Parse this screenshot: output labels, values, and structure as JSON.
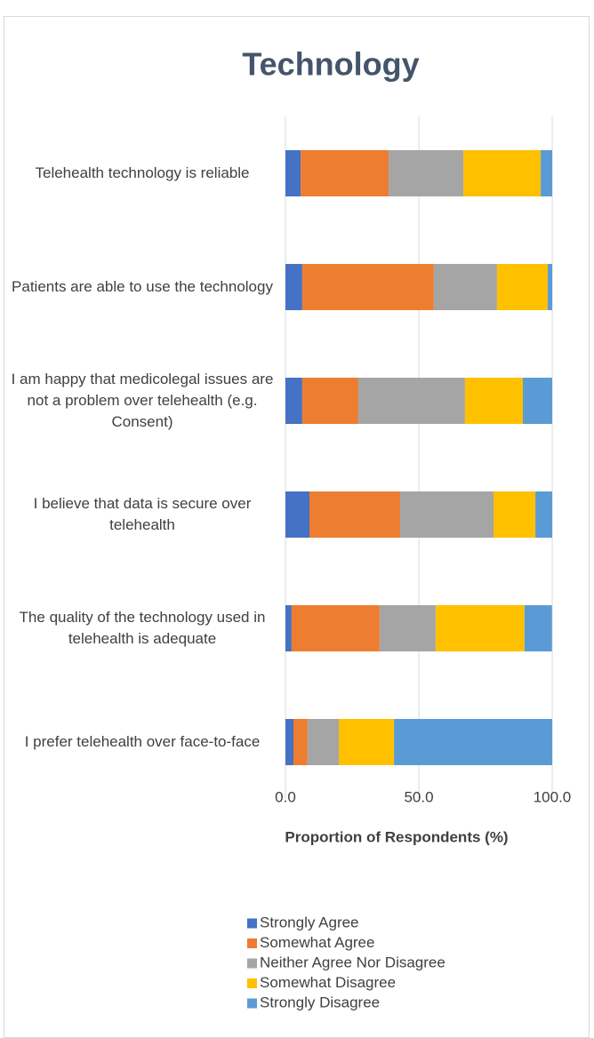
{
  "chart_data": {
    "type": "stacked_barh",
    "title": "Technology",
    "x_label": "Proportion of Respondents (%)",
    "categories": [
      "Telehealth technology is reliable",
      "Patients are able to use the technology",
      "I am happy that medicolegal issues are not a problem over telehealth (e.g. Consent)",
      "I believe that data is secure over telehealth",
      "The quality of the technology used in telehealth is adequate",
      "I prefer telehealth over face-to-face"
    ],
    "series": [
      {
        "name": "Strongly Agree",
        "color": "#4472c4",
        "values": [
          5.7,
          6.3,
          6.3,
          9.0,
          2.3,
          3.0
        ]
      },
      {
        "name": "Somewhat Agree",
        "color": "#ed7d31",
        "values": [
          33.0,
          49.3,
          21.0,
          34.0,
          33.0,
          5.3
        ]
      },
      {
        "name": "Neither Agree Nor Disagree",
        "color": "#a5a5a5",
        "values": [
          28.0,
          23.7,
          40.0,
          35.0,
          21.0,
          11.7
        ]
      },
      {
        "name": "Somewhat Disagree",
        "color": "#ffc000",
        "values": [
          29.0,
          19.0,
          21.7,
          15.7,
          33.3,
          20.7
        ]
      },
      {
        "name": "Strongly Disagree",
        "color": "#5b9bd5",
        "values": [
          4.3,
          1.7,
          11.0,
          6.3,
          10.3,
          59.3
        ]
      }
    ],
    "xlim": [
      0,
      100
    ],
    "xticks": [
      {
        "value": 0,
        "label": "0.0"
      },
      {
        "value": 50,
        "label": "50.0"
      },
      {
        "value": 100,
        "label": "100.0"
      }
    ],
    "grid": true,
    "legend": "bottom"
  }
}
